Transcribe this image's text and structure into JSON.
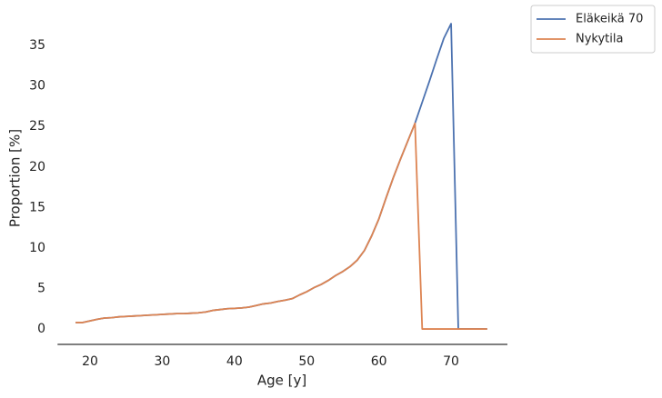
{
  "chart_data": {
    "type": "line",
    "xlabel": "Age [y]",
    "ylabel": "Proportion [%]",
    "x": [
      18,
      19,
      20,
      21,
      22,
      23,
      24,
      25,
      26,
      27,
      28,
      29,
      30,
      31,
      32,
      33,
      34,
      35,
      36,
      37,
      38,
      39,
      40,
      41,
      42,
      43,
      44,
      45,
      46,
      47,
      48,
      49,
      50,
      51,
      52,
      53,
      54,
      55,
      56,
      57,
      58,
      59,
      60,
      61,
      62,
      63,
      64,
      65,
      66,
      67,
      68,
      69,
      70,
      71,
      72,
      73,
      74,
      75
    ],
    "series": [
      {
        "name": "Eläkeikä 70",
        "color": "#4c72b0",
        "values": [
          0.8,
          0.8,
          1.0,
          1.2,
          1.35,
          1.4,
          1.5,
          1.55,
          1.6,
          1.65,
          1.7,
          1.75,
          1.8,
          1.85,
          1.9,
          1.9,
          1.95,
          2.0,
          2.1,
          2.3,
          2.4,
          2.5,
          2.55,
          2.6,
          2.7,
          2.9,
          3.1,
          3.2,
          3.4,
          3.55,
          3.75,
          4.2,
          4.6,
          5.1,
          5.5,
          6.0,
          6.6,
          7.1,
          7.7,
          8.5,
          9.7,
          11.5,
          13.6,
          16.2,
          18.7,
          21.0,
          23.2,
          25.4,
          28.0,
          30.6,
          33.3,
          35.9,
          37.7,
          0,
          0,
          0,
          0,
          0
        ]
      },
      {
        "name": "Nykytila",
        "color": "#dd8452",
        "values": [
          0.8,
          0.8,
          1.0,
          1.2,
          1.35,
          1.4,
          1.5,
          1.55,
          1.6,
          1.65,
          1.7,
          1.75,
          1.8,
          1.85,
          1.9,
          1.9,
          1.95,
          2.0,
          2.1,
          2.3,
          2.4,
          2.5,
          2.55,
          2.6,
          2.7,
          2.9,
          3.1,
          3.2,
          3.4,
          3.55,
          3.75,
          4.2,
          4.6,
          5.1,
          5.5,
          6.0,
          6.6,
          7.1,
          7.7,
          8.5,
          9.7,
          11.5,
          13.6,
          16.2,
          18.7,
          21.0,
          23.2,
          25.4,
          0,
          0,
          0,
          0,
          0,
          0,
          0,
          0,
          0,
          0
        ]
      }
    ],
    "xlim": [
      15.5,
      77.8
    ],
    "xticks": [
      20,
      30,
      40,
      50,
      60,
      70
    ],
    "ylim": [
      -1.9,
      39.5
    ],
    "yticks": [
      0,
      5,
      10,
      15,
      20,
      25,
      30,
      35
    ],
    "grid": false,
    "legend": "outside upper right"
  }
}
